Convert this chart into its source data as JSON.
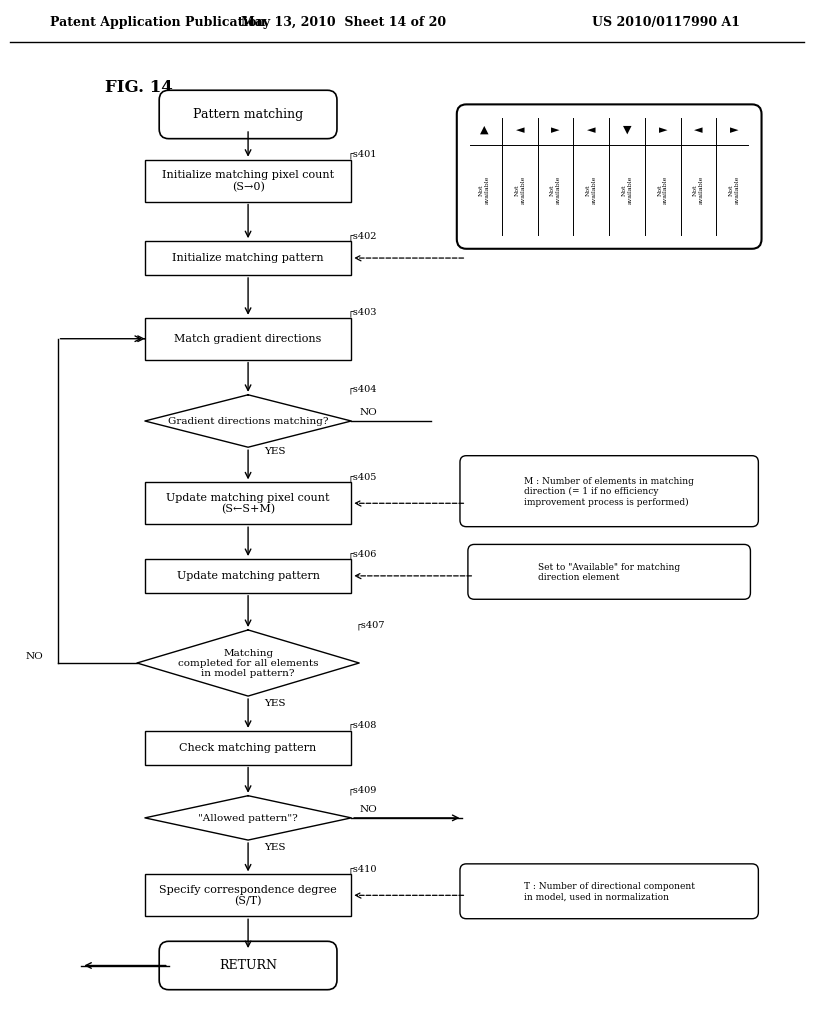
{
  "header_left": "Patent Application Publication",
  "header_mid": "May 13, 2010  Sheet 14 of 20",
  "header_right": "US 2010/0117990 A1",
  "fig_label": "FIG. 14",
  "background": "#ffffff"
}
